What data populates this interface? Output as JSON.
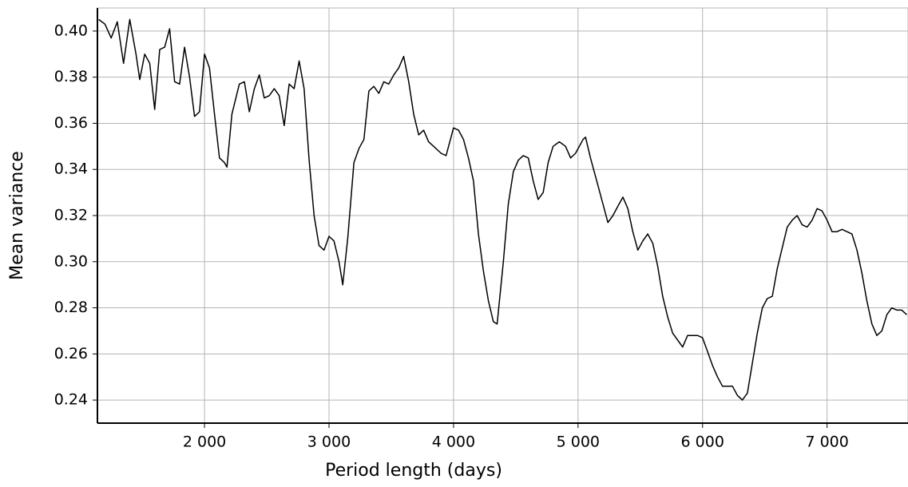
{
  "chart_data": {
    "type": "line",
    "xlabel": "Period length (days)",
    "ylabel": "Mean variance",
    "xlim": [
      1140,
      7650
    ],
    "ylim": [
      0.23,
      0.41
    ],
    "xticks": [
      {
        "value": 2000,
        "label": "2 000"
      },
      {
        "value": 3000,
        "label": "3 000"
      },
      {
        "value": 4000,
        "label": "4 000"
      },
      {
        "value": 5000,
        "label": "5 000"
      },
      {
        "value": 6000,
        "label": "6 000"
      },
      {
        "value": 7000,
        "label": "7 000"
      }
    ],
    "yticks": [
      0.24,
      0.26,
      0.28,
      {
        "value": 0.3,
        "label": "0.30"
      },
      0.32,
      0.34,
      0.36,
      0.38,
      {
        "value": 0.4,
        "label": "0.40"
      }
    ],
    "grid": true,
    "color": "#000000",
    "x": [
      1150,
      1200,
      1250,
      1300,
      1350,
      1400,
      1450,
      1480,
      1520,
      1560,
      1600,
      1640,
      1680,
      1720,
      1760,
      1800,
      1840,
      1880,
      1920,
      1960,
      2000,
      2040,
      2080,
      2120,
      2160,
      2180,
      2220,
      2280,
      2320,
      2360,
      2400,
      2440,
      2480,
      2520,
      2560,
      2600,
      2640,
      2680,
      2720,
      2760,
      2800,
      2840,
      2880,
      2920,
      2960,
      3000,
      3040,
      3080,
      3110,
      3150,
      3200,
      3240,
      3280,
      3320,
      3360,
      3400,
      3440,
      3480,
      3520,
      3560,
      3600,
      3640,
      3680,
      3720,
      3760,
      3800,
      3840,
      3900,
      3940,
      4000,
      4040,
      4080,
      4120,
      4160,
      4200,
      4240,
      4280,
      4320,
      4350,
      4400,
      4440,
      4480,
      4520,
      4560,
      4600,
      4640,
      4680,
      4720,
      4760,
      4800,
      4850,
      4900,
      4940,
      4980,
      5040,
      5060,
      5100,
      5160,
      5200,
      5240,
      5280,
      5320,
      5360,
      5400,
      5440,
      5480,
      5520,
      5560,
      5600,
      5640,
      5680,
      5720,
      5760,
      5800,
      5840,
      5880,
      5920,
      5960,
      6000,
      6040,
      6080,
      6120,
      6160,
      6200,
      6240,
      6280,
      6320,
      6360,
      6400,
      6440,
      6480,
      6520,
      6560,
      6600,
      6640,
      6680,
      6720,
      6760,
      6800,
      6840,
      6880,
      6920,
      6960,
      7000,
      7040,
      7080,
      7120,
      7160,
      7200,
      7240,
      7280,
      7320,
      7360,
      7400,
      7440,
      7480,
      7520,
      7560,
      7600,
      7640
    ],
    "values": [
      0.405,
      0.403,
      0.397,
      0.404,
      0.386,
      0.405,
      0.39,
      0.379,
      0.39,
      0.386,
      0.366,
      0.392,
      0.393,
      0.401,
      0.378,
      0.377,
      0.393,
      0.38,
      0.363,
      0.365,
      0.39,
      0.384,
      0.364,
      0.345,
      0.343,
      0.341,
      0.364,
      0.377,
      0.378,
      0.365,
      0.375,
      0.381,
      0.371,
      0.372,
      0.375,
      0.372,
      0.359,
      0.377,
      0.375,
      0.387,
      0.375,
      0.344,
      0.32,
      0.307,
      0.305,
      0.311,
      0.309,
      0.3,
      0.29,
      0.31,
      0.343,
      0.349,
      0.353,
      0.374,
      0.376,
      0.373,
      0.378,
      0.377,
      0.381,
      0.384,
      0.389,
      0.378,
      0.364,
      0.355,
      0.357,
      0.352,
      0.35,
      0.347,
      0.346,
      0.358,
      0.357,
      0.353,
      0.345,
      0.335,
      0.312,
      0.296,
      0.283,
      0.274,
      0.273,
      0.3,
      0.325,
      0.339,
      0.344,
      0.346,
      0.345,
      0.335,
      0.327,
      0.33,
      0.343,
      0.35,
      0.352,
      0.35,
      0.345,
      0.347,
      0.353,
      0.354,
      0.345,
      0.333,
      0.325,
      0.317,
      0.32,
      0.324,
      0.328,
      0.323,
      0.313,
      0.305,
      0.309,
      0.312,
      0.308,
      0.298,
      0.285,
      0.276,
      0.269,
      0.266,
      0.263,
      0.268,
      0.268,
      0.268,
      0.267,
      0.261,
      0.255,
      0.25,
      0.246,
      0.246,
      0.246,
      0.242,
      0.24,
      0.243,
      0.256,
      0.269,
      0.28,
      0.284,
      0.285,
      0.297,
      0.306,
      0.315,
      0.318,
      0.32,
      0.316,
      0.315,
      0.318,
      0.323,
      0.322,
      0.318,
      0.313,
      0.313,
      0.314,
      0.313,
      0.312,
      0.305,
      0.295,
      0.283,
      0.273,
      0.268,
      0.27,
      0.277,
      0.28,
      0.279,
      0.279,
      0.277
    ]
  }
}
